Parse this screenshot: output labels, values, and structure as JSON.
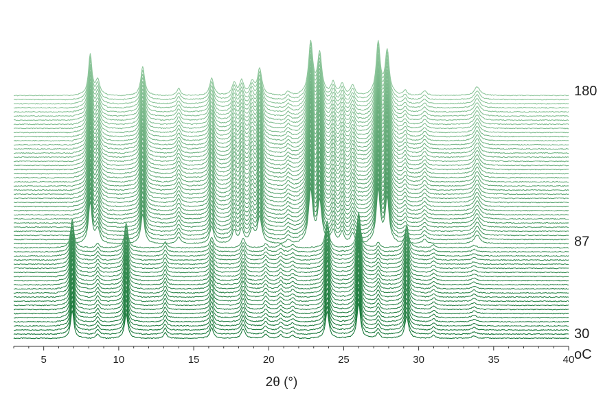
{
  "chart_data": {
    "type": "line",
    "subtype": "stacked-waterfall",
    "title": "",
    "xlabel": "2θ (°)",
    "temperature_unit": "oC",
    "xlim": [
      3,
      40
    ],
    "xticks": [
      5,
      10,
      15,
      20,
      25,
      30,
      35,
      40
    ],
    "temperature_range": [
      30,
      180
    ],
    "temperature_labels": [
      "180",
      "87",
      "30"
    ],
    "temperature_label_values": [
      180,
      87,
      30
    ],
    "scan_count": 60,
    "phase_transition_temperature": 87,
    "color_low": "#1b7a3c",
    "color_high": "#8fc79c",
    "series": [
      {
        "name": "",
        "temperature_range": [
          30,
          87
        ],
        "peaks": [
          {
            "x": 6.9,
            "height": 48,
            "width": 0.13
          },
          {
            "x": 8.6,
            "height": 8,
            "width": 0.12
          },
          {
            "x": 10.5,
            "height": 42,
            "width": 0.13
          },
          {
            "x": 13.1,
            "height": 10,
            "width": 0.12
          },
          {
            "x": 16.2,
            "height": 18,
            "width": 0.14
          },
          {
            "x": 18.3,
            "height": 16,
            "width": 0.15
          },
          {
            "x": 19.8,
            "height": 7,
            "width": 0.14
          },
          {
            "x": 20.8,
            "height": 6,
            "width": 0.14
          },
          {
            "x": 21.6,
            "height": 5,
            "width": 0.14
          },
          {
            "x": 23.9,
            "height": 46,
            "width": 0.14
          },
          {
            "x": 26.0,
            "height": 60,
            "width": 0.14
          },
          {
            "x": 27.3,
            "height": 10,
            "width": 0.14
          },
          {
            "x": 29.2,
            "height": 38,
            "width": 0.15
          },
          {
            "x": 31.0,
            "height": 5,
            "width": 0.15
          },
          {
            "x": 33.7,
            "height": 4,
            "width": 0.18
          }
        ]
      },
      {
        "name": "",
        "temperature_range": [
          87,
          180
        ],
        "peaks": [
          {
            "x": 8.1,
            "height": 70,
            "width": 0.14
          },
          {
            "x": 8.6,
            "height": 25,
            "width": 0.16
          },
          {
            "x": 11.6,
            "height": 50,
            "width": 0.15
          },
          {
            "x": 14.0,
            "height": 12,
            "width": 0.15
          },
          {
            "x": 16.2,
            "height": 30,
            "width": 0.16
          },
          {
            "x": 17.7,
            "height": 22,
            "width": 0.16
          },
          {
            "x": 18.2,
            "height": 24,
            "width": 0.16
          },
          {
            "x": 18.9,
            "height": 22,
            "width": 0.18
          },
          {
            "x": 19.4,
            "height": 45,
            "width": 0.17
          },
          {
            "x": 21.3,
            "height": 8,
            "width": 0.16
          },
          {
            "x": 22.8,
            "height": 90,
            "width": 0.17
          },
          {
            "x": 23.4,
            "height": 70,
            "width": 0.17
          },
          {
            "x": 24.3,
            "height": 22,
            "width": 0.16
          },
          {
            "x": 24.9,
            "height": 20,
            "width": 0.16
          },
          {
            "x": 25.6,
            "height": 18,
            "width": 0.17
          },
          {
            "x": 27.3,
            "height": 90,
            "width": 0.16
          },
          {
            "x": 27.9,
            "height": 75,
            "width": 0.16
          },
          {
            "x": 29.1,
            "height": 8,
            "width": 0.16
          },
          {
            "x": 30.4,
            "height": 8,
            "width": 0.17
          },
          {
            "x": 33.9,
            "height": 15,
            "width": 0.22
          }
        ]
      }
    ],
    "grid": false,
    "legend": "none"
  }
}
